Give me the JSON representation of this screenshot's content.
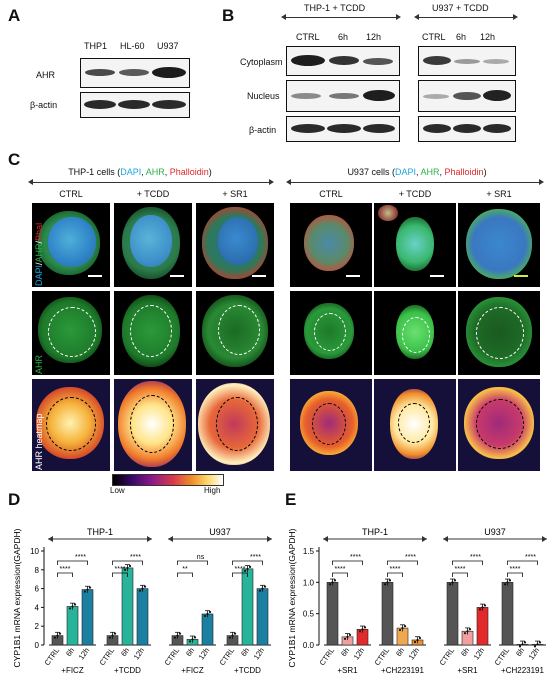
{
  "panels": {
    "A": "A",
    "B": "B",
    "C": "C",
    "D": "D",
    "E": "E"
  },
  "panelA": {
    "lanes": [
      "THP1",
      "HL-60",
      "U937"
    ],
    "rows": [
      "AHR",
      "β-actin"
    ]
  },
  "panelB": {
    "groups": [
      "THP-1 + TCDD",
      "U937 + TCDD"
    ],
    "lanes": [
      "CTRL",
      "6h",
      "12h"
    ],
    "rows": [
      "Cytoplasm",
      "Nucleus",
      "β-actin"
    ]
  },
  "panelC": {
    "left_title": {
      "pre": "THP-1 cells (",
      "dapi": "DAPI",
      "s1": ", ",
      "ahr": "AHR",
      "s2": ", ",
      "phal": "Phalloidin",
      "post": ")"
    },
    "right_title": {
      "pre": "U937 cells (",
      "dapi": "DAPI",
      "s1": ", ",
      "ahr": "AHR",
      "s2": ", ",
      "phal": "Phalloidin",
      "post": ")"
    },
    "conditions": [
      "CTRL",
      "+ TCDD",
      "+ SR1"
    ],
    "row_labels": {
      "merge_dapi": "DAPI",
      "merge_sep1": "/",
      "merge_ahr": "AHR",
      "merge_sep2": "/",
      "merge_phal": "Phal",
      "ahr": "AHR",
      "heatmap": "AHR heatmap"
    },
    "colorbar": {
      "low": "Low",
      "high": "High"
    },
    "colors": {
      "dapi": "#1aa7e0",
      "ahr": "#2bb34a",
      "phal": "#e0262b"
    }
  },
  "panelD": {
    "ylabel": "CYP1B1 mRNA expression(GAPDH)",
    "groups": [
      "THP-1",
      "U937"
    ],
    "treatments": [
      "+FICZ",
      "+TCDD",
      "+FICZ",
      "+TCDD"
    ],
    "ticks": [
      "0",
      "2",
      "4",
      "6",
      "8",
      "10"
    ],
    "sig_outer": [
      "****",
      "****",
      "ns",
      "****"
    ],
    "sig_inner": [
      "****",
      "****",
      "**",
      "****"
    ],
    "color": "#1a7fa0"
  },
  "panelE": {
    "ylabel": "CYP1B1 mRNA expression(GAPDH)",
    "groups": [
      "THP-1",
      "U937"
    ],
    "treatments": [
      "+SR1",
      "+CH223191",
      "+SR1",
      "+CH223191"
    ],
    "ticks": [
      "0.0",
      "0.5",
      "1.0",
      "1.5"
    ],
    "sig_outer": [
      "****",
      "****",
      "****",
      "****"
    ],
    "sig_inner": [
      "****",
      "****",
      "****",
      "****"
    ],
    "color": "#e22a2a"
  },
  "bar_labels": [
    "CTRL",
    "6h",
    "12h"
  ],
  "chart_data": [
    {
      "type": "bar",
      "title": "D",
      "ylabel": "CYP1B1 mRNA expression(GAPDH)",
      "ylim": [
        0,
        10
      ],
      "categories": [
        "THP-1 +FICZ",
        "THP-1 +TCDD",
        "U937 +FICZ",
        "U937 +TCDD"
      ],
      "series": [
        {
          "name": "CTRL",
          "values": [
            1.0,
            1.0,
            1.0,
            1.0
          ]
        },
        {
          "name": "6h",
          "values": [
            4.1,
            8.2,
            0.6,
            8.1
          ]
        },
        {
          "name": "12h",
          "values": [
            5.9,
            6.0,
            3.3,
            6.0
          ]
        }
      ]
    },
    {
      "type": "bar",
      "title": "E",
      "ylabel": "CYP1B1 mRNA expression(GAPDH)",
      "ylim": [
        0,
        1.5
      ],
      "categories": [
        "THP-1 +SR1",
        "THP-1 +CH223191",
        "U937 +SR1",
        "U937 +CH223191"
      ],
      "series": [
        {
          "name": "CTRL",
          "values": [
            1.0,
            1.0,
            1.0,
            1.0
          ]
        },
        {
          "name": "6h",
          "values": [
            0.13,
            0.27,
            0.22,
            0.01
          ]
        },
        {
          "name": "12h",
          "values": [
            0.25,
            0.08,
            0.6,
            0.01
          ]
        }
      ]
    }
  ]
}
